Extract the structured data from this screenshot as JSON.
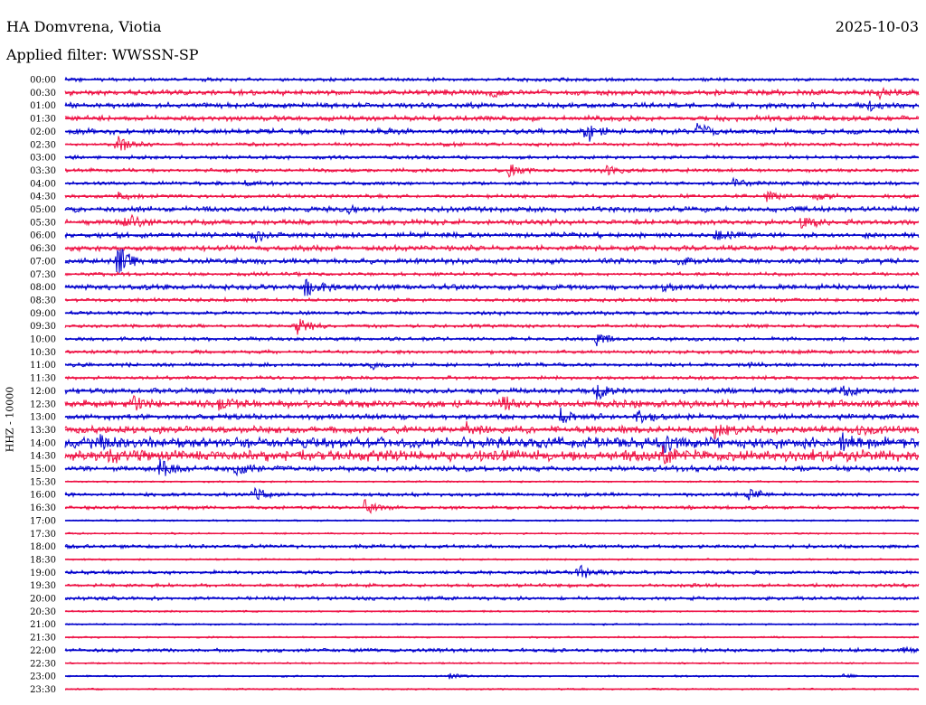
{
  "header": {
    "station": "HA Domvrena, Viotia",
    "date": "2025-10-03",
    "filter": "Applied filter: WWSSN-SP"
  },
  "chart_data": {
    "type": "line",
    "title": "",
    "ylabel": "HHZ - 10000",
    "xlabel": "",
    "colors": [
      "#0000cc",
      "#ee1144"
    ],
    "row_minutes": 30,
    "row_labels": [
      "00:00",
      "00:30",
      "01:00",
      "01:30",
      "02:00",
      "02:30",
      "03:00",
      "03:30",
      "04:00",
      "04:30",
      "05:00",
      "05:30",
      "06:00",
      "06:30",
      "07:00",
      "07:30",
      "08:00",
      "08:30",
      "09:00",
      "09:30",
      "10:00",
      "10:30",
      "11:00",
      "11:30",
      "12:00",
      "12:30",
      "13:00",
      "13:30",
      "14:00",
      "14:30",
      "15:00",
      "15:30",
      "16:00",
      "16:30",
      "17:00",
      "17:30",
      "18:00",
      "18:30",
      "19:00",
      "19:30",
      "20:00",
      "20:30",
      "21:00",
      "21:30",
      "22:00",
      "22:30",
      "23:00",
      "23:30"
    ],
    "noise_levels": [
      2,
      3,
      3,
      3,
      3,
      2,
      2,
      2,
      2,
      2,
      3,
      3,
      3,
      3,
      3,
      2,
      3,
      2,
      2,
      2,
      2,
      2,
      2,
      2,
      3,
      4,
      3,
      4,
      6,
      6,
      3,
      1,
      2,
      2,
      1,
      1,
      2,
      1,
      2,
      2,
      2,
      1,
      1,
      1,
      2,
      1,
      1,
      1
    ],
    "events": [
      {
        "row": 1,
        "x": 0.5,
        "amp": 5
      },
      {
        "row": 1,
        "x": 0.95,
        "amp": 6
      },
      {
        "row": 2,
        "x": 0.94,
        "amp": 4
      },
      {
        "row": 4,
        "x": 0.61,
        "amp": 12
      },
      {
        "row": 4,
        "x": 0.74,
        "amp": 9
      },
      {
        "row": 5,
        "x": 0.06,
        "amp": 9
      },
      {
        "row": 7,
        "x": 0.52,
        "amp": 7
      },
      {
        "row": 7,
        "x": 0.63,
        "amp": 7
      },
      {
        "row": 8,
        "x": 0.21,
        "amp": 4
      },
      {
        "row": 8,
        "x": 0.78,
        "amp": 5
      },
      {
        "row": 9,
        "x": 0.06,
        "amp": 6
      },
      {
        "row": 9,
        "x": 0.82,
        "amp": 7
      },
      {
        "row": 9,
        "x": 0.88,
        "amp": 5
      },
      {
        "row": 10,
        "x": 0.33,
        "amp": 4
      },
      {
        "row": 11,
        "x": 0.07,
        "amp": 10
      },
      {
        "row": 11,
        "x": 0.86,
        "amp": 8
      },
      {
        "row": 12,
        "x": 0.22,
        "amp": 9
      },
      {
        "row": 12,
        "x": 0.76,
        "amp": 6
      },
      {
        "row": 14,
        "x": 0.06,
        "amp": 20
      },
      {
        "row": 14,
        "x": 0.72,
        "amp": 5
      },
      {
        "row": 16,
        "x": 0.28,
        "amp": 13
      },
      {
        "row": 16,
        "x": 0.7,
        "amp": 4
      },
      {
        "row": 19,
        "x": 0.27,
        "amp": 11
      },
      {
        "row": 20,
        "x": 0.62,
        "amp": 8
      },
      {
        "row": 22,
        "x": 0.36,
        "amp": 4
      },
      {
        "row": 22,
        "x": 0.8,
        "amp": 4
      },
      {
        "row": 24,
        "x": 0.62,
        "amp": 10
      },
      {
        "row": 24,
        "x": 0.91,
        "amp": 6
      },
      {
        "row": 25,
        "x": 0.08,
        "amp": 7
      },
      {
        "row": 25,
        "x": 0.18,
        "amp": 9
      },
      {
        "row": 25,
        "x": 0.51,
        "amp": 7
      },
      {
        "row": 26,
        "x": 0.58,
        "amp": 9
      },
      {
        "row": 26,
        "x": 0.67,
        "amp": 10
      },
      {
        "row": 27,
        "x": 0.47,
        "amp": 7
      },
      {
        "row": 27,
        "x": 0.76,
        "amp": 8
      },
      {
        "row": 27,
        "x": 0.93,
        "amp": 6
      },
      {
        "row": 28,
        "x": 0.04,
        "amp": 8
      },
      {
        "row": 28,
        "x": 0.7,
        "amp": 10
      },
      {
        "row": 28,
        "x": 0.91,
        "amp": 8
      },
      {
        "row": 29,
        "x": 0.05,
        "amp": 8
      },
      {
        "row": 29,
        "x": 0.5,
        "amp": 8
      },
      {
        "row": 29,
        "x": 0.7,
        "amp": 7
      },
      {
        "row": 30,
        "x": 0.11,
        "amp": 10
      },
      {
        "row": 30,
        "x": 0.2,
        "amp": 7
      },
      {
        "row": 32,
        "x": 0.22,
        "amp": 8
      },
      {
        "row": 32,
        "x": 0.8,
        "amp": 8
      },
      {
        "row": 33,
        "x": 0.35,
        "amp": 8
      },
      {
        "row": 38,
        "x": 0.6,
        "amp": 10
      },
      {
        "row": 44,
        "x": 0.98,
        "amp": 4
      },
      {
        "row": 46,
        "x": 0.45,
        "amp": 3
      },
      {
        "row": 46,
        "x": 0.91,
        "amp": 3
      }
    ]
  }
}
